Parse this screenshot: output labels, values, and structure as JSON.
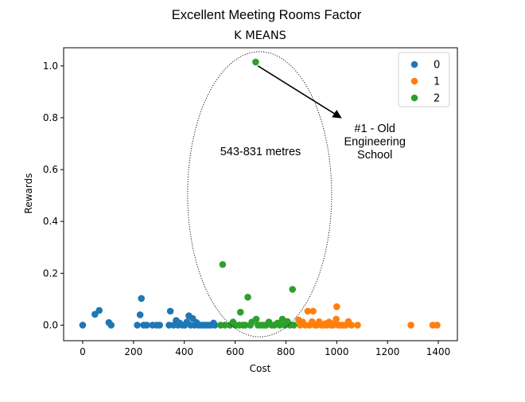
{
  "suptitle": "Excellent Meeting Rooms Factor",
  "chart_data": {
    "type": "scatter",
    "title": "K MEANS",
    "xlabel": "Cost",
    "ylabel": "Rewards",
    "xlim": [
      -75,
      1475
    ],
    "ylim": [
      -0.06,
      1.07
    ],
    "xticks": [
      0,
      200,
      400,
      600,
      800,
      1000,
      1200,
      1400
    ],
    "yticks": [
      0.0,
      0.2,
      0.4,
      0.6,
      0.8,
      1.0
    ],
    "xtick_labels": [
      "0",
      "200",
      "400",
      "600",
      "800",
      "1000",
      "1200",
      "1400"
    ],
    "ytick_labels": [
      "0.0",
      "0.2",
      "0.4",
      "0.6",
      "0.8",
      "1.0"
    ],
    "grid": false,
    "legend": "top-right",
    "series": [
      {
        "name": "0",
        "color": "#1f77b4",
        "points": [
          [
            0,
            0.0
          ],
          [
            48,
            0.042
          ],
          [
            65,
            0.057
          ],
          [
            103,
            0.01
          ],
          [
            112,
            0.0
          ],
          [
            215,
            0.0
          ],
          [
            226,
            0.04
          ],
          [
            231,
            0.103
          ],
          [
            240,
            0.0
          ],
          [
            252,
            0.0
          ],
          [
            275,
            0.0
          ],
          [
            291,
            0.0
          ],
          [
            303,
            0.0
          ],
          [
            340,
            0.0
          ],
          [
            345,
            0.054
          ],
          [
            358,
            0.0
          ],
          [
            368,
            0.018
          ],
          [
            375,
            0.0
          ],
          [
            382,
            0.008
          ],
          [
            392,
            0.0
          ],
          [
            402,
            0.0
          ],
          [
            410,
            0.012
          ],
          [
            418,
            0.036
          ],
          [
            425,
            0.0
          ],
          [
            433,
            0.026
          ],
          [
            440,
            0.0
          ],
          [
            448,
            0.01
          ],
          [
            456,
            0.0
          ],
          [
            465,
            0.0
          ],
          [
            475,
            0.0
          ],
          [
            485,
            0.0
          ],
          [
            495,
            0.0
          ],
          [
            505,
            0.0
          ],
          [
            515,
            0.008
          ],
          [
            520,
            0.0
          ]
        ]
      },
      {
        "name": "1",
        "color": "#ff7f0e",
        "points": [
          [
            850,
            0.02
          ],
          [
            856,
            0.0
          ],
          [
            866,
            0.012
          ],
          [
            876,
            0.0
          ],
          [
            886,
            0.054
          ],
          [
            893,
            0.0
          ],
          [
            903,
            0.013
          ],
          [
            907,
            0.054
          ],
          [
            914,
            0.0
          ],
          [
            922,
            0.0
          ],
          [
            931,
            0.013
          ],
          [
            940,
            0.0
          ],
          [
            948,
            0.0
          ],
          [
            955,
            0.006
          ],
          [
            962,
            0.0
          ],
          [
            970,
            0.012
          ],
          [
            978,
            0.0
          ],
          [
            986,
            0.0
          ],
          [
            992,
            0.008
          ],
          [
            998,
            0.023
          ],
          [
            1000,
            0.071
          ],
          [
            1006,
            0.0
          ],
          [
            1015,
            0.0
          ],
          [
            1025,
            0.0
          ],
          [
            1036,
            0.0
          ],
          [
            1046,
            0.014
          ],
          [
            1058,
            0.0
          ],
          [
            1082,
            0.0
          ],
          [
            1292,
            0.0
          ],
          [
            1378,
            0.0
          ],
          [
            1395,
            0.0
          ]
        ]
      },
      {
        "name": "2",
        "color": "#2ca02c",
        "points": [
          [
            543,
            0.0
          ],
          [
            551,
            0.234
          ],
          [
            560,
            0.0
          ],
          [
            580,
            0.0
          ],
          [
            592,
            0.012
          ],
          [
            602,
            0.0
          ],
          [
            616,
            0.0
          ],
          [
            621,
            0.05
          ],
          [
            630,
            0.0
          ],
          [
            640,
            0.0
          ],
          [
            650,
            0.108
          ],
          [
            660,
            0.0
          ],
          [
            666,
            0.012
          ],
          [
            681,
            1.015
          ],
          [
            683,
            0.023
          ],
          [
            690,
            0.0
          ],
          [
            701,
            0.0
          ],
          [
            713,
            0.0
          ],
          [
            722,
            0.0
          ],
          [
            733,
            0.012
          ],
          [
            744,
            0.0
          ],
          [
            755,
            0.0
          ],
          [
            767,
            0.008
          ],
          [
            776,
            0.0
          ],
          [
            786,
            0.023
          ],
          [
            796,
            0.0
          ],
          [
            806,
            0.014
          ],
          [
            816,
            0.0
          ],
          [
            826,
            0.138
          ],
          [
            831,
            0.0
          ]
        ]
      }
    ],
    "annotations": [
      {
        "text": "543-831 metres",
        "x": 700,
        "y": 0.655
      },
      {
        "text": "#1 - Old Engineering School",
        "lines": [
          "#1 - Old",
          "Engineering",
          "School"
        ],
        "x": 1150,
        "y": 0.745,
        "arrow_from": [
          690,
          1.0
        ],
        "arrow_to": [
          1017,
          0.8
        ]
      }
    ],
    "highlight_region": {
      "shape": "ellipse",
      "x_range": [
        413,
        980
      ],
      "y_range": [
        -0.045,
        1.055
      ],
      "style": "dotted"
    }
  }
}
